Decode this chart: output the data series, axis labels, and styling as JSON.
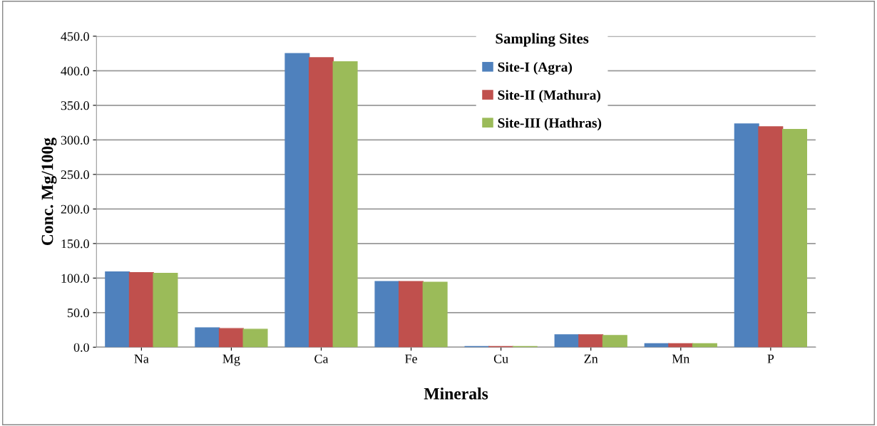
{
  "chart_data": {
    "type": "bar",
    "xlabel": "Minerals",
    "ylabel": "Conc. Mg/100g",
    "legend_title": "Sampling Sites",
    "categories": [
      "Na",
      "Mg",
      "Ca",
      "Fe",
      "Cu",
      "Zn",
      "Mn",
      "P"
    ],
    "series": [
      {
        "name": "Site-I (Agra)",
        "color": "#4f81bd",
        "values": [
          109,
          28,
          425,
          95,
          1,
          18,
          5,
          323
        ]
      },
      {
        "name": "Site-II (Mathura)",
        "color": "#c0504d",
        "values": [
          108,
          27,
          419,
          95,
          1,
          18,
          5,
          319
        ]
      },
      {
        "name": "Site-III (Hathras)",
        "color": "#9bbb59",
        "values": [
          107,
          26,
          413,
          94,
          1,
          17,
          5,
          315
        ]
      }
    ],
    "ylim": [
      0,
      450
    ],
    "yticks": [
      {
        "value": 0,
        "label": "0.0"
      },
      {
        "value": 50,
        "label": "50.0"
      },
      {
        "value": 100,
        "label": "100.0"
      },
      {
        "value": 150,
        "label": "150.0"
      },
      {
        "value": 200,
        "label": "200.0"
      },
      {
        "value": 250,
        "label": "250.0"
      },
      {
        "value": 300,
        "label": "300.0"
      },
      {
        "value": 350,
        "label": "350.0"
      },
      {
        "value": 400,
        "label": "400.0"
      },
      {
        "value": 450,
        "label": "450.0"
      }
    ],
    "grid": "y",
    "legend": "top right"
  }
}
